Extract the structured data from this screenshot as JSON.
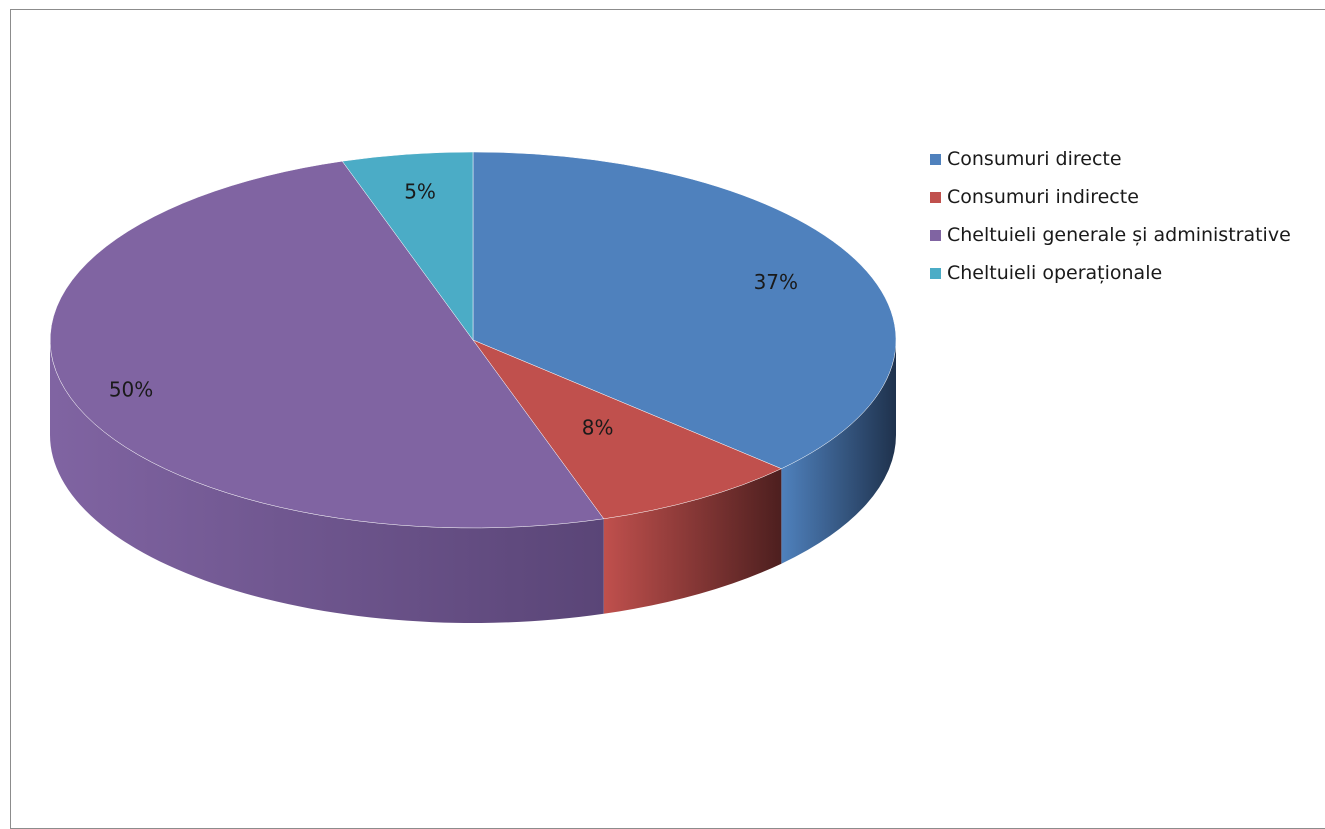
{
  "chart_data": {
    "type": "pie",
    "categories": [
      "Consumuri directe",
      "Consumuri indirecte",
      "Cheltuieli generale și  administrative",
      "Cheltuieli operaționale"
    ],
    "values": [
      37,
      8,
      50,
      5
    ],
    "labels": [
      "37%",
      "8%",
      "50%",
      "5%"
    ],
    "colors": [
      "#4f81bd",
      "#c0504d",
      "#8064a2",
      "#4bacc6"
    ],
    "side_colors": [
      "#1f324d",
      "#4d1f1f",
      "#5a4577",
      "#2d6a7a"
    ],
    "legend_position": "right",
    "three_d": true
  }
}
